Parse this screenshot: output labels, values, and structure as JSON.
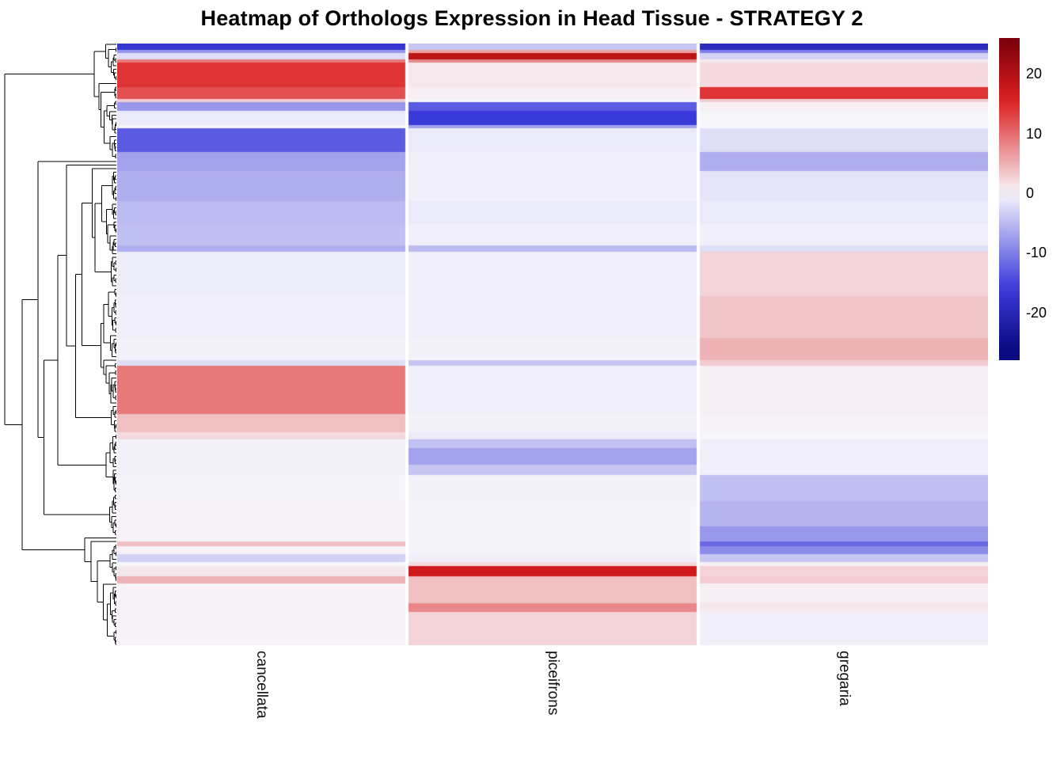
{
  "title": "Heatmap of Orthologs Expression in Head Tissue - STRATEGY 2",
  "chart_data": {
    "type": "heatmap",
    "title": "Heatmap of Orthologs Expression in Head Tissue - STRATEGY 2",
    "columns": [
      "cancellata",
      "piceifrons",
      "gregaria"
    ],
    "row_dendrogram": true,
    "legend": {
      "domain": {
        "min": -28,
        "max": 26
      },
      "ticks": [
        {
          "value": 20,
          "label": "20"
        },
        {
          "value": 10,
          "label": "10"
        },
        {
          "value": 0,
          "label": "0"
        },
        {
          "value": -10,
          "label": "-10"
        },
        {
          "value": -20,
          "label": "-20"
        }
      ]
    },
    "colors": {
      "zero": "#f7f6fb",
      "positive": "#dc1e1e",
      "positive_dark": "#78000a",
      "negative": "#3c3cdc",
      "negative_dark": "#0a0a82"
    },
    "bands": [
      {
        "from": 0.0,
        "to": 0.01,
        "values": [
          -17,
          -4,
          -19
        ]
      },
      {
        "from": 0.01,
        "to": 0.016,
        "values": [
          -8,
          6,
          -10
        ]
      },
      {
        "from": 0.016,
        "to": 0.026,
        "values": [
          -2,
          19,
          -3
        ]
      },
      {
        "from": 0.026,
        "to": 0.032,
        "values": [
          9,
          8,
          1
        ]
      },
      {
        "from": 0.032,
        "to": 0.072,
        "values": [
          14,
          1,
          2
        ]
      },
      {
        "from": 0.072,
        "to": 0.092,
        "values": [
          12,
          0.5,
          14
        ]
      },
      {
        "from": 0.092,
        "to": 0.098,
        "values": [
          3,
          0,
          3
        ]
      },
      {
        "from": 0.098,
        "to": 0.112,
        "values": [
          -8,
          -13,
          0.5
        ]
      },
      {
        "from": 0.112,
        "to": 0.135,
        "values": [
          -1,
          -16,
          0
        ]
      },
      {
        "from": 0.135,
        "to": 0.141,
        "values": [
          0,
          -7,
          0
        ]
      },
      {
        "from": 0.141,
        "to": 0.18,
        "values": [
          -13,
          -1,
          -2
        ]
      },
      {
        "from": 0.18,
        "to": 0.212,
        "values": [
          -7,
          -0.5,
          -6
        ]
      },
      {
        "from": 0.212,
        "to": 0.262,
        "values": [
          -6,
          -0.5,
          -1.5
        ]
      },
      {
        "from": 0.262,
        "to": 0.3,
        "values": [
          -5,
          -1,
          -1
        ]
      },
      {
        "from": 0.3,
        "to": 0.336,
        "values": [
          -4.5,
          -0.5,
          -0.5
        ]
      },
      {
        "from": 0.336,
        "to": 0.346,
        "values": [
          -6,
          -5,
          -2
        ]
      },
      {
        "from": 0.346,
        "to": 0.42,
        "values": [
          -0.8,
          -0.5,
          2.5
        ]
      },
      {
        "from": 0.42,
        "to": 0.49,
        "values": [
          -0.5,
          -0.5,
          3.5
        ]
      },
      {
        "from": 0.49,
        "to": 0.526,
        "values": [
          -0.3,
          -0.3,
          5
        ]
      },
      {
        "from": 0.526,
        "to": 0.536,
        "values": [
          -2,
          -4,
          3
        ]
      },
      {
        "from": 0.536,
        "to": 0.616,
        "values": [
          9,
          -0.5,
          0.5
        ]
      },
      {
        "from": 0.616,
        "to": 0.646,
        "values": [
          4,
          -0.3,
          0.3
        ]
      },
      {
        "from": 0.646,
        "to": 0.658,
        "values": [
          2,
          -1,
          0
        ]
      },
      {
        "from": 0.658,
        "to": 0.672,
        "values": [
          -0.3,
          -4.5,
          -0.5
        ]
      },
      {
        "from": 0.672,
        "to": 0.7,
        "values": [
          -0.3,
          -7,
          -0.5
        ]
      },
      {
        "from": 0.7,
        "to": 0.717,
        "values": [
          -0.3,
          -4,
          -0.5
        ]
      },
      {
        "from": 0.717,
        "to": 0.76,
        "values": [
          -0.2,
          -0.3,
          -4.5
        ]
      },
      {
        "from": 0.76,
        "to": 0.803,
        "values": [
          0.2,
          -0.2,
          -5.5
        ]
      },
      {
        "from": 0.803,
        "to": 0.828,
        "values": [
          0.3,
          -0.2,
          -8
        ]
      },
      {
        "from": 0.828,
        "to": 0.836,
        "values": [
          4,
          -0.2,
          -12
        ]
      },
      {
        "from": 0.836,
        "to": 0.849,
        "values": [
          0.2,
          -0.2,
          -9
        ]
      },
      {
        "from": 0.849,
        "to": 0.862,
        "values": [
          -3,
          -0.5,
          -4
        ]
      },
      {
        "from": 0.862,
        "to": 0.868,
        "values": [
          0,
          2,
          0.5
        ]
      },
      {
        "from": 0.868,
        "to": 0.886,
        "values": [
          1,
          17,
          2.5
        ]
      },
      {
        "from": 0.886,
        "to": 0.898,
        "values": [
          5,
          4,
          3
        ]
      },
      {
        "from": 0.898,
        "to": 0.93,
        "values": [
          0.2,
          4,
          0.5
        ]
      },
      {
        "from": 0.93,
        "to": 0.945,
        "values": [
          0.2,
          8,
          1
        ]
      },
      {
        "from": 0.945,
        "to": 1.0,
        "values": [
          0.2,
          2.5,
          -0.5
        ]
      }
    ]
  }
}
